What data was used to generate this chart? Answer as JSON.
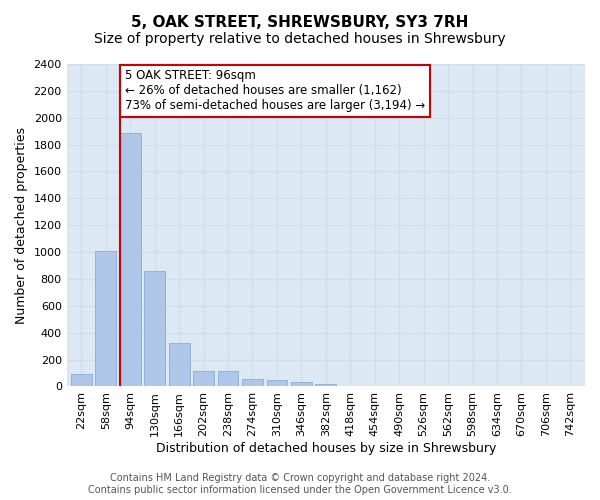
{
  "title": "5, OAK STREET, SHREWSBURY, SY3 7RH",
  "subtitle": "Size of property relative to detached houses in Shrewsbury",
  "xlabel": "Distribution of detached houses by size in Shrewsbury",
  "ylabel": "Number of detached properties",
  "bar_values": [
    90,
    1010,
    1890,
    860,
    320,
    115,
    115,
    55,
    45,
    35,
    20,
    0,
    0,
    0,
    0,
    0,
    0,
    0,
    0,
    0,
    0
  ],
  "bar_labels": [
    "22sqm",
    "58sqm",
    "94sqm",
    "130sqm",
    "166sqm",
    "202sqm",
    "238sqm",
    "274sqm",
    "310sqm",
    "346sqm",
    "382sqm",
    "418sqm",
    "454sqm",
    "490sqm",
    "526sqm",
    "562sqm",
    "598sqm",
    "634sqm",
    "670sqm",
    "706sqm",
    "742sqm"
  ],
  "bar_color": "#aec6e8",
  "bar_edge_color": "#7ba7d0",
  "vline_x": 2,
  "vline_color": "#cc0000",
  "annotation_box_text": "5 OAK STREET: 96sqm\n← 26% of detached houses are smaller (1,162)\n73% of semi-detached houses are larger (3,194) →",
  "annotation_box_color": "#cc0000",
  "annotation_box_fill": "#ffffff",
  "ylim": [
    0,
    2400
  ],
  "yticks": [
    0,
    200,
    400,
    600,
    800,
    1000,
    1200,
    1400,
    1600,
    1800,
    2000,
    2200,
    2400
  ],
  "grid_color": "#d0dde8",
  "background_color": "#dce9f5",
  "footer_text": "Contains HM Land Registry data © Crown copyright and database right 2024.\nContains public sector information licensed under the Open Government Licence v3.0.",
  "title_fontsize": 11,
  "subtitle_fontsize": 10,
  "xlabel_fontsize": 9,
  "ylabel_fontsize": 9,
  "tick_fontsize": 8,
  "annotation_fontsize": 8.5,
  "footer_fontsize": 7
}
